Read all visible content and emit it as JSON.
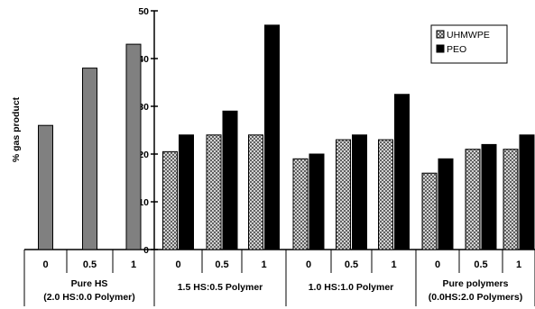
{
  "chart_data": {
    "type": "bar",
    "ylabel": "% gas product",
    "xlabel": "",
    "title": "",
    "ylim": [
      0,
      50
    ],
    "y_ticks": [
      0,
      10,
      20,
      30,
      40,
      50
    ],
    "legend": {
      "placement": "top-right",
      "entries": [
        {
          "name": "UHMWPE",
          "pattern": "crosshatch"
        },
        {
          "name": "PEO",
          "pattern": "solid-black"
        }
      ]
    },
    "groups": [
      {
        "label_lines": [
          "Pure HS",
          "(2.0 HS:0.0 Polymer)"
        ],
        "categories": [
          "0",
          "0.5",
          "1"
        ],
        "series": [
          {
            "name": "",
            "color": "#808080",
            "values": [
              26,
              38,
              43
            ]
          }
        ]
      },
      {
        "label_lines": [
          "1.5 HS:0.5 Polymer"
        ],
        "categories": [
          "0",
          "0.5",
          "1"
        ],
        "series": [
          {
            "name": "UHMWPE",
            "values": [
              20.5,
              24,
              24
            ]
          },
          {
            "name": "PEO",
            "values": [
              24,
              29,
              47
            ]
          }
        ]
      },
      {
        "label_lines": [
          "1.0 HS:1.0 Polymer"
        ],
        "categories": [
          "0",
          "0.5",
          "1"
        ],
        "series": [
          {
            "name": "UHMWPE",
            "values": [
              19,
              23,
              23
            ]
          },
          {
            "name": "PEO",
            "values": [
              20,
              24,
              32.5
            ]
          }
        ]
      },
      {
        "label_lines": [
          "Pure polymers",
          "(0.0HS:2.0 Polymers)"
        ],
        "categories": [
          "0",
          "0.5",
          "1"
        ],
        "series": [
          {
            "name": "UHMWPE",
            "values": [
              16,
              21,
              21
            ]
          },
          {
            "name": "PEO",
            "values": [
              19,
              22,
              24
            ]
          }
        ]
      }
    ]
  }
}
